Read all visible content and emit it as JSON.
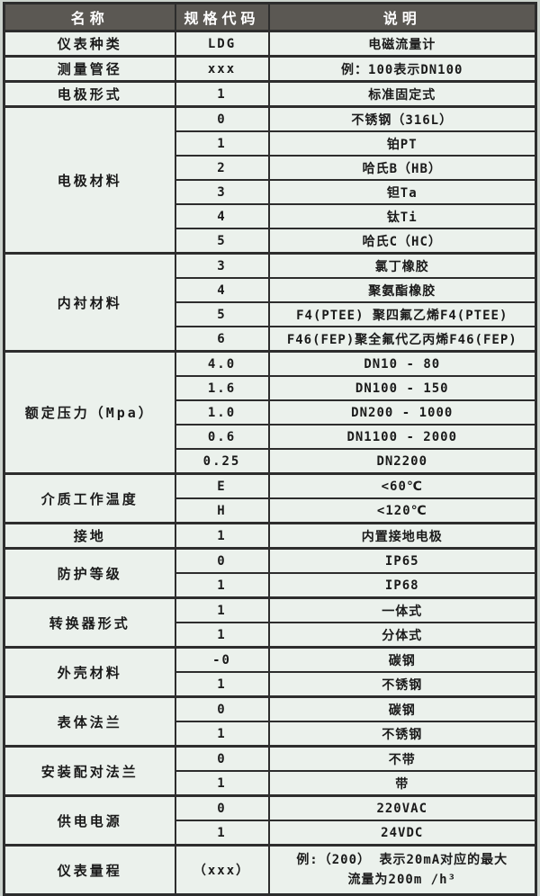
{
  "table": {
    "columns": [
      "名称",
      "规格代码",
      "说明"
    ],
    "groups": [
      {
        "label": "仪表种类",
        "rows": [
          {
            "code": "LDG",
            "desc": "电磁流量计"
          }
        ]
      },
      {
        "label": "测量管径",
        "rows": [
          {
            "code": "xxx",
            "desc": "例：100表示DN100"
          }
        ]
      },
      {
        "label": "电极形式",
        "rows": [
          {
            "code": "1",
            "desc": "标准固定式"
          }
        ]
      },
      {
        "label": "电极材料",
        "rows": [
          {
            "code": "0",
            "desc": "不锈钢（316L）"
          },
          {
            "code": "1",
            "desc": "铂PT"
          },
          {
            "code": "2",
            "desc": "哈氏B（HB）"
          },
          {
            "code": "3",
            "desc": "钽Ta"
          },
          {
            "code": "4",
            "desc": "钛Ti"
          },
          {
            "code": "5",
            "desc": "哈氏C（HC）"
          }
        ]
      },
      {
        "label": "内衬材料",
        "rows": [
          {
            "code": "3",
            "desc": "氯丁橡胶"
          },
          {
            "code": "4",
            "desc": "聚氨酯橡胶"
          },
          {
            "code": "5",
            "desc": "F4(PTEE) 聚四氟乙烯F4(PTEE)"
          },
          {
            "code": "6",
            "desc": "F46(FEP)聚全氟代乙丙烯F46(FEP)"
          }
        ]
      },
      {
        "label": "额定压力（Mpa）",
        "rows": [
          {
            "code": "4.0",
            "desc": "DN10 - 80"
          },
          {
            "code": "1.6",
            "desc": "DN100 - 150"
          },
          {
            "code": "1.0",
            "desc": "DN200 - 1000"
          },
          {
            "code": "0.6",
            "desc": "DN1100 - 2000"
          },
          {
            "code": "0.25",
            "desc": "DN2200"
          }
        ]
      },
      {
        "label": "介质工作温度",
        "rows": [
          {
            "code": "E",
            "desc": "<60℃"
          },
          {
            "code": "H",
            "desc": "<120℃"
          }
        ]
      },
      {
        "label": "接地",
        "rows": [
          {
            "code": "1",
            "desc": "内置接地电极"
          }
        ]
      },
      {
        "label": "防护等级",
        "rows": [
          {
            "code": "0",
            "desc": "IP65"
          },
          {
            "code": "1",
            "desc": "IP68"
          }
        ]
      },
      {
        "label": "转换器形式",
        "rows": [
          {
            "code": "1",
            "desc": "一体式"
          },
          {
            "code": "1",
            "desc": "分体式"
          }
        ]
      },
      {
        "label": "外壳材料",
        "rows": [
          {
            "code": "-0",
            "desc": "碳钢"
          },
          {
            "code": "1",
            "desc": "不锈钢"
          }
        ]
      },
      {
        "label": "表体法兰",
        "rows": [
          {
            "code": "0",
            "desc": "碳钢"
          },
          {
            "code": "1",
            "desc": "不锈钢"
          }
        ]
      },
      {
        "label": "安装配对法兰",
        "rows": [
          {
            "code": "0",
            "desc": "不带"
          },
          {
            "code": "1",
            "desc": "带"
          }
        ]
      },
      {
        "label": "供电电源",
        "rows": [
          {
            "code": "0",
            "desc": "220VAC"
          },
          {
            "code": "1",
            "desc": "24VDC"
          }
        ]
      },
      {
        "label": "仪表量程",
        "rows": [
          {
            "code": "（xxx）",
            "desc_lines": [
              "例:（200） 表示20mA对应的最大",
              "流量为200m /h³"
            ]
          }
        ]
      }
    ]
  }
}
